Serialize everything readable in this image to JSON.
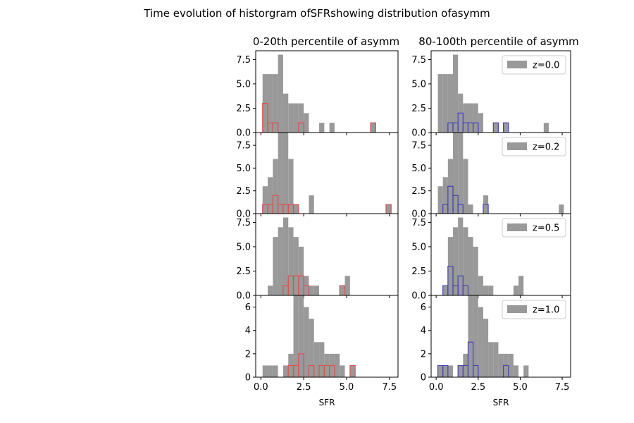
{
  "chart_data": {
    "type": "bar",
    "title": "Time evolution of historgram ofSFRshowing distribution ofasymm",
    "xlabel": "SFR",
    "xlim": [
      -0.3,
      8.0
    ],
    "bin_width": 0.3,
    "x_ticks": [
      0.0,
      2.5,
      5.0,
      7.5
    ],
    "x_tick_labels": [
      "0.0",
      "2.5",
      "5.0",
      "7.5"
    ],
    "column_titles": [
      "0-20th percentile of asymm",
      "80-100th percentile of asymm"
    ],
    "colors": {
      "all": "#999999",
      "low_percentile_step": "#d9534f",
      "high_percentile_step": "#4444bb"
    },
    "rows": [
      {
        "legend": "z=0.0",
        "ylim": [
          0,
          8.4
        ],
        "y_ticks": [
          0.0,
          2.5,
          5.0,
          7.5
        ],
        "y_tick_labels": [
          "0.0",
          "2.5",
          "5.0",
          "7.5"
        ],
        "all_bins": [
          {
            "x": 0.1,
            "count": 6
          },
          {
            "x": 0.4,
            "count": 6
          },
          {
            "x": 0.7,
            "count": 6
          },
          {
            "x": 1.0,
            "count": 8
          },
          {
            "x": 1.3,
            "count": 4
          },
          {
            "x": 1.6,
            "count": 3
          },
          {
            "x": 1.9,
            "count": 3
          },
          {
            "x": 2.2,
            "count": 3
          },
          {
            "x": 2.5,
            "count": 2
          },
          {
            "x": 3.4,
            "count": 1
          },
          {
            "x": 4.0,
            "count": 1
          },
          {
            "x": 6.4,
            "count": 1
          }
        ],
        "low_bins": [
          {
            "x": 0.1,
            "count": 3
          },
          {
            "x": 0.4,
            "count": 1
          },
          {
            "x": 0.7,
            "count": 1
          },
          {
            "x": 2.2,
            "count": 1
          },
          {
            "x": 6.4,
            "count": 1
          }
        ],
        "high_bins": [
          {
            "x": 0.7,
            "count": 1
          },
          {
            "x": 1.0,
            "count": 1
          },
          {
            "x": 1.3,
            "count": 2
          },
          {
            "x": 1.6,
            "count": 1
          },
          {
            "x": 1.9,
            "count": 1
          },
          {
            "x": 2.2,
            "count": 1
          },
          {
            "x": 3.4,
            "count": 1
          },
          {
            "x": 4.0,
            "count": 1
          }
        ]
      },
      {
        "legend": "z=0.2",
        "ylim": [
          0,
          8.9
        ],
        "y_ticks": [
          0.0,
          2.5,
          5.0,
          7.5
        ],
        "y_tick_labels": [
          "0.0",
          "2.5",
          "5.0",
          "7.5"
        ],
        "all_bins": [
          {
            "x": 0.1,
            "count": 3
          },
          {
            "x": 0.4,
            "count": 4
          },
          {
            "x": 0.7,
            "count": 6
          },
          {
            "x": 1.0,
            "count": 9
          },
          {
            "x": 1.3,
            "count": 9
          },
          {
            "x": 1.6,
            "count": 6
          },
          {
            "x": 1.9,
            "count": 1
          },
          {
            "x": 2.8,
            "count": 2
          },
          {
            "x": 7.3,
            "count": 1
          }
        ],
        "low_bins": [
          {
            "x": 0.1,
            "count": 1
          },
          {
            "x": 0.4,
            "count": 1
          },
          {
            "x": 0.7,
            "count": 2
          },
          {
            "x": 1.0,
            "count": 1
          },
          {
            "x": 1.3,
            "count": 1
          },
          {
            "x": 1.6,
            "count": 1
          },
          {
            "x": 1.9,
            "count": 1
          },
          {
            "x": 7.3,
            "count": 1
          }
        ],
        "high_bins": [
          {
            "x": 0.4,
            "count": 1
          },
          {
            "x": 0.7,
            "count": 3
          },
          {
            "x": 1.0,
            "count": 2
          },
          {
            "x": 1.3,
            "count": 1
          },
          {
            "x": 2.8,
            "count": 1
          }
        ]
      },
      {
        "legend": "z=0.5",
        "ylim": [
          0,
          8.4
        ],
        "y_ticks": [
          0.0,
          2.5,
          5.0,
          7.5
        ],
        "y_tick_labels": [
          "0.0",
          "2.5",
          "5.0",
          "7.5"
        ],
        "all_bins": [
          {
            "x": 0.4,
            "count": 1
          },
          {
            "x": 0.7,
            "count": 6
          },
          {
            "x": 1.0,
            "count": 7
          },
          {
            "x": 1.3,
            "count": 8
          },
          {
            "x": 1.6,
            "count": 7
          },
          {
            "x": 1.9,
            "count": 6
          },
          {
            "x": 2.2,
            "count": 5
          },
          {
            "x": 2.5,
            "count": 2
          },
          {
            "x": 2.8,
            "count": 1
          },
          {
            "x": 3.1,
            "count": 1
          },
          {
            "x": 4.6,
            "count": 1
          },
          {
            "x": 4.9,
            "count": 2
          }
        ],
        "low_bins": [
          {
            "x": 1.3,
            "count": 1
          },
          {
            "x": 1.6,
            "count": 2
          },
          {
            "x": 1.9,
            "count": 2
          },
          {
            "x": 2.2,
            "count": 2
          },
          {
            "x": 2.5,
            "count": 1
          },
          {
            "x": 4.6,
            "count": 1
          }
        ],
        "high_bins": [
          {
            "x": 0.4,
            "count": 1
          },
          {
            "x": 0.7,
            "count": 3
          },
          {
            "x": 1.0,
            "count": 1
          },
          {
            "x": 1.3,
            "count": 2
          },
          {
            "x": 1.6,
            "count": 1
          }
        ]
      },
      {
        "legend": "z=1.0",
        "ylim": [
          0,
          7.0
        ],
        "y_ticks": [
          0,
          2,
          4,
          6
        ],
        "y_tick_labels": [
          "0",
          "2",
          "4",
          "6"
        ],
        "all_bins": [
          {
            "x": 0.1,
            "count": 1
          },
          {
            "x": 0.4,
            "count": 1
          },
          {
            "x": 0.7,
            "count": 1
          },
          {
            "x": 1.3,
            "count": 1
          },
          {
            "x": 1.6,
            "count": 2
          },
          {
            "x": 1.9,
            "count": 7
          },
          {
            "x": 2.2,
            "count": 7
          },
          {
            "x": 2.5,
            "count": 6
          },
          {
            "x": 2.8,
            "count": 5
          },
          {
            "x": 3.1,
            "count": 3
          },
          {
            "x": 3.4,
            "count": 3
          },
          {
            "x": 3.7,
            "count": 2
          },
          {
            "x": 4.0,
            "count": 2
          },
          {
            "x": 4.3,
            "count": 2
          },
          {
            "x": 4.6,
            "count": 1
          },
          {
            "x": 5.2,
            "count": 1
          }
        ],
        "low_bins": [
          {
            "x": 1.6,
            "count": 1
          },
          {
            "x": 1.9,
            "count": 1
          },
          {
            "x": 2.2,
            "count": 2
          },
          {
            "x": 2.8,
            "count": 1
          },
          {
            "x": 3.4,
            "count": 1
          },
          {
            "x": 3.7,
            "count": 1
          },
          {
            "x": 4.0,
            "count": 1
          },
          {
            "x": 5.2,
            "count": 1
          }
        ],
        "high_bins": [
          {
            "x": 0.1,
            "count": 1
          },
          {
            "x": 0.4,
            "count": 1
          },
          {
            "x": 1.3,
            "count": 1
          },
          {
            "x": 1.6,
            "count": 1
          },
          {
            "x": 1.9,
            "count": 3
          },
          {
            "x": 2.2,
            "count": 1
          },
          {
            "x": 4.0,
            "count": 1
          }
        ]
      }
    ]
  }
}
